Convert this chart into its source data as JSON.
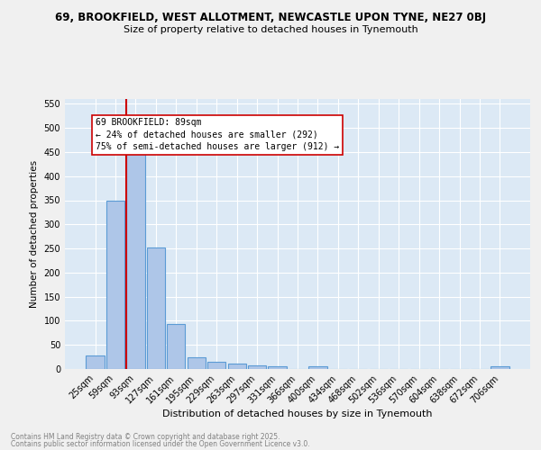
{
  "title1": "69, BROOKFIELD, WEST ALLOTMENT, NEWCASTLE UPON TYNE, NE27 0BJ",
  "title2": "Size of property relative to detached houses in Tynemouth",
  "xlabel": "Distribution of detached houses by size in Tynemouth",
  "ylabel": "Number of detached properties",
  "categories": [
    "25sqm",
    "59sqm",
    "93sqm",
    "127sqm",
    "161sqm",
    "195sqm",
    "229sqm",
    "263sqm",
    "297sqm",
    "331sqm",
    "366sqm",
    "400sqm",
    "434sqm",
    "468sqm",
    "502sqm",
    "536sqm",
    "570sqm",
    "604sqm",
    "638sqm",
    "672sqm",
    "706sqm"
  ],
  "values": [
    28,
    350,
    449,
    252,
    93,
    25,
    15,
    12,
    8,
    5,
    0,
    5,
    0,
    0,
    0,
    0,
    0,
    0,
    0,
    0,
    5
  ],
  "bar_color": "#aec6e8",
  "bar_edge_color": "#5b9bd5",
  "vline_index": 2,
  "vline_color": "#cc0000",
  "annotation_line1": "69 BROOKFIELD: 89sqm",
  "annotation_line2": "← 24% of detached houses are smaller (292)",
  "annotation_line3": "75% of semi-detached houses are larger (912) →",
  "annotation_box_color": "#ffffff",
  "annotation_box_edge": "#cc0000",
  "ylim": [
    0,
    560
  ],
  "yticks": [
    0,
    50,
    100,
    150,
    200,
    250,
    300,
    350,
    400,
    450,
    500,
    550
  ],
  "background_color": "#dce9f5",
  "grid_color": "#ffffff",
  "fig_bg_color": "#f0f0f0",
  "footer_line1": "Contains HM Land Registry data © Crown copyright and database right 2025.",
  "footer_line2": "Contains public sector information licensed under the Open Government Licence v3.0."
}
